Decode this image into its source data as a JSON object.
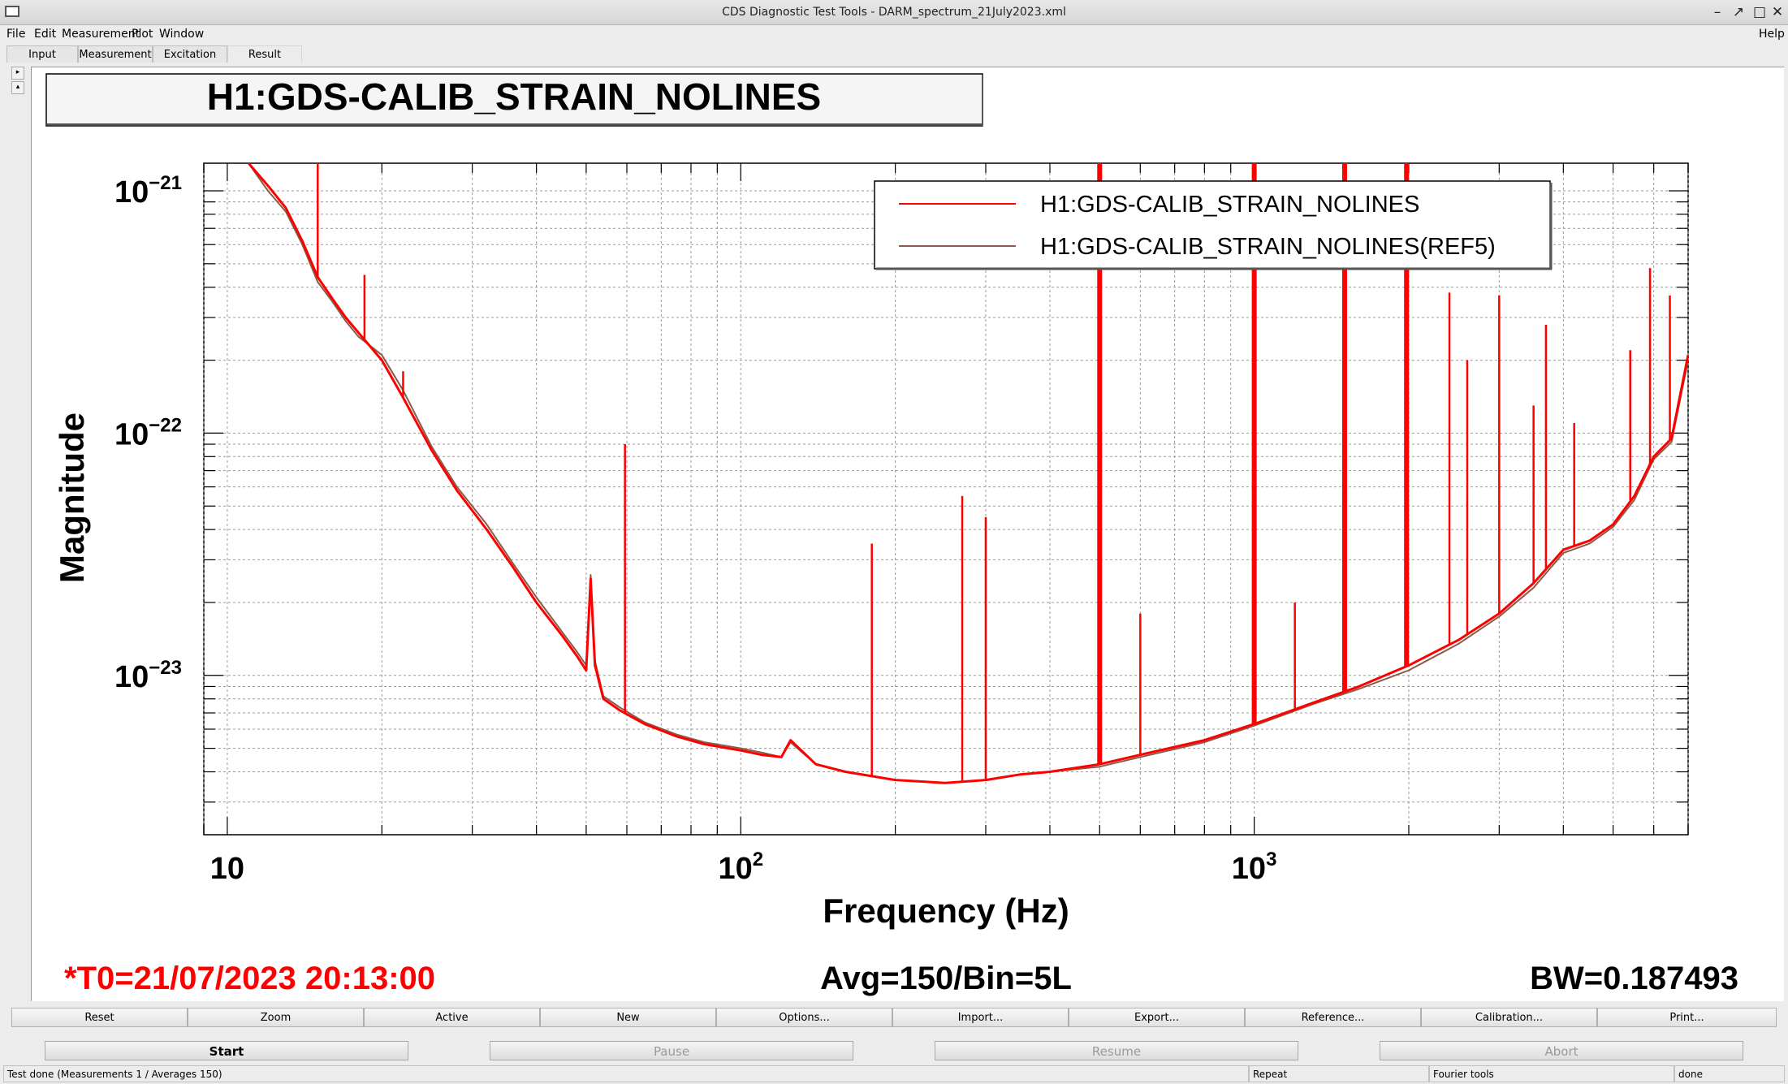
{
  "window": {
    "title": "CDS Diagnostic Test Tools - DARM_spectrum_21July2023.xml",
    "minimize_glyph": "–",
    "restore_glyph": "↗",
    "maximize_glyph": "□",
    "close_glyph": "✕"
  },
  "menubar": {
    "file": "File",
    "edit": "Edit",
    "measurement": "Measurement",
    "plot": "Plot",
    "window": "Window",
    "help": "Help"
  },
  "tabs": [
    {
      "label": "Input"
    },
    {
      "label": "Measurement"
    },
    {
      "label": "Excitation"
    },
    {
      "label": "Result"
    }
  ],
  "plot": {
    "channel_title": "H1:GDS-CALIB_STRAIN_NOLINES",
    "footer_t0": "*T0=21/07/2023 20:13:00",
    "footer_avg": "Avg=150/Bin=5L",
    "footer_bw": "BW=0.187493",
    "colors": {
      "trace": "#ff0000",
      "reference": "#8b5a4a",
      "footer_t0": "#ff0000"
    }
  },
  "chart_data": {
    "type": "line",
    "title": "H1:GDS-CALIB_STRAIN_NOLINES",
    "xlabel": "Frequency (Hz)",
    "ylabel": "Magnitude",
    "xscale": "log",
    "yscale": "log",
    "xlim": [
      9,
      7000
    ],
    "ylim": [
      2.2e-24,
      1.3e-21
    ],
    "grid": true,
    "legend_position": "top-right",
    "x_tick_labels": [
      {
        "value": 10,
        "base": "10",
        "exp": ""
      },
      {
        "value": 100,
        "base": "10",
        "exp": "2"
      },
      {
        "value": 1000,
        "base": "10",
        "exp": "3"
      }
    ],
    "y_tick_labels": [
      {
        "value": 1e-21,
        "base": "10",
        "exp": "−21"
      },
      {
        "value": 1e-22,
        "base": "10",
        "exp": "−22"
      },
      {
        "value": 1e-23,
        "base": "10",
        "exp": "−23"
      }
    ],
    "series": [
      {
        "name": "H1:GDS-CALIB_STRAIN_NOLINES",
        "color": "#ff0000",
        "x": [
          11,
          12,
          13,
          14,
          15,
          16,
          17,
          18,
          20,
          22,
          25,
          28,
          32,
          36,
          40,
          45,
          48,
          50,
          51,
          52,
          54,
          58,
          65,
          75,
          85,
          100,
          110,
          120,
          125,
          140,
          160,
          200,
          250,
          300,
          350,
          400,
          500,
          600,
          800,
          1000,
          1300,
          1600,
          2000,
          2500,
          3000,
          3500,
          4000,
          4500,
          5000,
          5500,
          6000,
          6500,
          7000
        ],
        "y": [
          1.3e-21,
          1.05e-21,
          8.5e-22,
          6.2e-22,
          4.4e-22,
          3.6e-22,
          3e-22,
          2.6e-22,
          2e-22,
          1.4e-22,
          8.5e-23,
          5.8e-23,
          4e-23,
          2.8e-23,
          2e-23,
          1.45e-23,
          1.2e-23,
          1.05e-23,
          2.5e-23,
          1.1e-23,
          8e-24,
          7.2e-24,
          6.3e-24,
          5.6e-24,
          5.2e-24,
          4.9e-24,
          4.7e-24,
          4.6e-24,
          5.4e-24,
          4.3e-24,
          4e-24,
          3.7e-24,
          3.6e-24,
          3.7e-24,
          3.9e-24,
          4e-24,
          4.3e-24,
          4.7e-24,
          5.4e-24,
          6.3e-24,
          7.7e-24,
          9e-24,
          1.1e-23,
          1.4e-23,
          1.8e-23,
          2.4e-23,
          3.3e-23,
          3.6e-23,
          4.2e-23,
          5.5e-23,
          8e-23,
          9.5e-23,
          2.1e-22
        ]
      },
      {
        "name": "H1:GDS-CALIB_STRAIN_NOLINES(REF5)",
        "color": "#8b5a4a",
        "x": [
          11,
          12,
          13,
          14,
          15,
          16,
          17,
          18,
          20,
          22,
          25,
          28,
          32,
          36,
          40,
          45,
          48,
          50,
          51,
          52,
          54,
          58,
          65,
          75,
          85,
          100,
          110,
          120,
          125,
          140,
          160,
          200,
          250,
          300,
          350,
          400,
          500,
          600,
          800,
          1000,
          1300,
          1600,
          2000,
          2500,
          3000,
          3500,
          4000,
          4500,
          5000,
          5500,
          6000,
          6500,
          7000
        ],
        "y": [
          1.3e-21,
          1e-21,
          8.2e-22,
          6e-22,
          4.2e-22,
          3.5e-22,
          2.9e-22,
          2.5e-22,
          2.1e-22,
          1.5e-22,
          8.8e-23,
          6e-23,
          4.2e-23,
          2.9e-23,
          2.1e-23,
          1.5e-23,
          1.25e-23,
          1.1e-23,
          2.6e-23,
          1.15e-23,
          8.2e-24,
          7.4e-24,
          6.4e-24,
          5.7e-24,
          5.3e-24,
          5e-24,
          4.8e-24,
          4.6e-24,
          5.3e-24,
          4.3e-24,
          4e-24,
          3.7e-24,
          3.6e-24,
          3.7e-24,
          3.9e-24,
          4e-24,
          4.2e-24,
          4.6e-24,
          5.3e-24,
          6.2e-24,
          7.6e-24,
          8.8e-24,
          1.05e-23,
          1.35e-23,
          1.75e-23,
          2.3e-23,
          3.2e-23,
          3.5e-23,
          4.1e-23,
          5.3e-23,
          7.8e-23,
          9.2e-23,
          2e-22
        ]
      }
    ],
    "spectral_lines": [
      {
        "x": 15,
        "peak": 1.3e-21
      },
      {
        "x": 18.5,
        "peak": 4.5e-22
      },
      {
        "x": 22,
        "peak": 1.8e-22
      },
      {
        "x": 59.5,
        "peak": 9e-23
      },
      {
        "x": 180,
        "peak": 3.5e-23
      },
      {
        "x": 270,
        "peak": 5.5e-23
      },
      {
        "x": 300,
        "peak": 4.5e-23
      },
      {
        "x": 500,
        "peak": 1.3e-21
      },
      {
        "x": 600,
        "peak": 1.8e-23
      },
      {
        "x": 1000,
        "peak": 1.3e-21
      },
      {
        "x": 1200,
        "peak": 2e-23
      },
      {
        "x": 1500,
        "peak": 1.3e-21
      },
      {
        "x": 1980,
        "peak": 1.3e-21
      },
      {
        "x": 2400,
        "peak": 3.8e-22
      },
      {
        "x": 2600,
        "peak": 2e-22
      },
      {
        "x": 3000,
        "peak": 3.7e-22
      },
      {
        "x": 3500,
        "peak": 1.3e-22
      },
      {
        "x": 3700,
        "peak": 2.8e-22
      },
      {
        "x": 4200,
        "peak": 1.1e-22
      },
      {
        "x": 5400,
        "peak": 2.2e-22
      },
      {
        "x": 5900,
        "peak": 4.8e-22
      },
      {
        "x": 6450,
        "peak": 3.7e-22
      }
    ]
  },
  "buttons_row1": [
    "Reset",
    "Zoom",
    "Active",
    "New",
    "Options...",
    "Import...",
    "Export...",
    "Reference...",
    "Calibration...",
    "Print..."
  ],
  "buttons_row2": [
    "Start",
    "Pause",
    "Resume",
    "Abort"
  ],
  "statusbar": {
    "message": "Test done (Measurements 1 / Averages 150)",
    "repeat": "Repeat",
    "fourier": "Fourier tools",
    "state": "done"
  }
}
